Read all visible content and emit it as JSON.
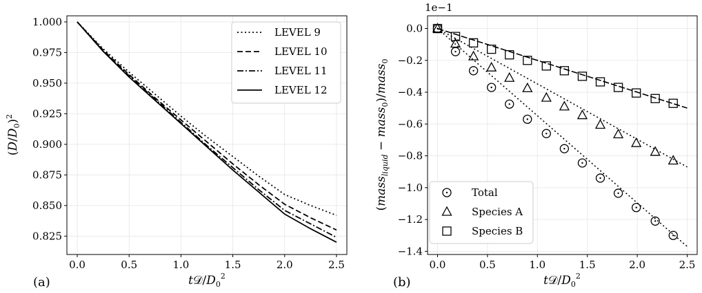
{
  "chart_data": [
    {
      "type": "line",
      "panel_label": "(a)",
      "xlabel": "tD/D0^2",
      "ylabel": "(D/D0)^2",
      "xlim": [
        -0.1,
        2.6
      ],
      "ylim": [
        0.81,
        1.005
      ],
      "xticks": [
        0.0,
        0.5,
        1.0,
        1.5,
        2.0,
        2.5
      ],
      "yticks": [
        0.825,
        0.85,
        0.875,
        0.9,
        0.925,
        0.95,
        0.975,
        1.0
      ],
      "xtick_labels": [
        "0.0",
        "0.5",
        "1.0",
        "1.5",
        "2.0",
        "2.5"
      ],
      "ytick_labels": [
        "0.825",
        "0.850",
        "0.875",
        "0.900",
        "0.925",
        "0.950",
        "0.975",
        "1.000"
      ],
      "grid": true,
      "legend": "top-right",
      "x": [
        0.0,
        0.25,
        0.5,
        0.75,
        1.0,
        1.25,
        1.5,
        1.75,
        2.0,
        2.25,
        2.5
      ],
      "series": [
        {
          "name": "LEVEL 9",
          "style": "dotted",
          "values": [
            1.0,
            0.978,
            0.959,
            0.941,
            0.923,
            0.906,
            0.89,
            0.874,
            0.859,
            0.85,
            0.842
          ]
        },
        {
          "name": "LEVEL 10",
          "style": "dashed",
          "values": [
            1.0,
            0.977,
            0.957,
            0.938,
            0.92,
            0.902,
            0.884,
            0.867,
            0.851,
            0.84,
            0.83
          ]
        },
        {
          "name": "LEVEL 11",
          "style": "dashdot",
          "values": [
            1.0,
            0.976,
            0.956,
            0.937,
            0.918,
            0.899,
            0.881,
            0.863,
            0.846,
            0.835,
            0.824
          ]
        },
        {
          "name": "LEVEL 12",
          "style": "solid",
          "values": [
            1.0,
            0.976,
            0.955,
            0.936,
            0.917,
            0.898,
            0.879,
            0.861,
            0.843,
            0.831,
            0.82
          ]
        }
      ]
    },
    {
      "type": "scatter",
      "panel_label": "(b)",
      "xlabel": "tD/D0^2",
      "ylabel": "(mass_liquid - mass_0)/mass_0",
      "offset_label": "1e−1",
      "xlim": [
        -0.1,
        2.6
      ],
      "ylim": [
        -1.42,
        0.08
      ],
      "xticks": [
        0.0,
        0.5,
        1.0,
        1.5,
        2.0,
        2.5
      ],
      "yticks": [
        0.0,
        -0.2,
        -0.4,
        -0.6,
        -0.8,
        -1.0,
        -1.2,
        -1.4
      ],
      "xtick_labels": [
        "0.0",
        "0.5",
        "1.0",
        "1.5",
        "2.0",
        "2.5"
      ],
      "ytick_labels": [
        "0.0",
        "−0.2",
        "−0.4",
        "−0.6",
        "−0.8",
        "−1.0",
        "−1.2",
        "−1.4"
      ],
      "grid": true,
      "legend": "bottom-left",
      "x": [
        0.0,
        0.18,
        0.36,
        0.54,
        0.72,
        0.9,
        1.09,
        1.27,
        1.45,
        1.63,
        1.81,
        1.99,
        2.18,
        2.36
      ],
      "series": [
        {
          "name": "Total",
          "marker": "circle",
          "values": [
            0.0,
            -0.145,
            -0.265,
            -0.37,
            -0.475,
            -0.57,
            -0.66,
            -0.755,
            -0.845,
            -0.94,
            -1.035,
            -1.125,
            -1.21,
            -1.3
          ],
          "fit": [
            [
              0.0,
              0.0
            ],
            [
              2.5,
              -1.37
            ]
          ]
        },
        {
          "name": "Species A",
          "marker": "triangle",
          "values": [
            0.0,
            -0.095,
            -0.175,
            -0.245,
            -0.31,
            -0.375,
            -0.435,
            -0.49,
            -0.545,
            -0.605,
            -0.665,
            -0.72,
            -0.775,
            -0.83
          ],
          "fit": [
            [
              0.0,
              0.0
            ],
            [
              2.5,
              -0.87
            ]
          ]
        },
        {
          "name": "Species B",
          "marker": "square",
          "values": [
            0.0,
            -0.05,
            -0.09,
            -0.13,
            -0.165,
            -0.2,
            -0.235,
            -0.265,
            -0.3,
            -0.335,
            -0.37,
            -0.405,
            -0.44,
            -0.47
          ],
          "fit": [
            [
              0.0,
              0.0
            ],
            [
              2.5,
              -0.5
            ]
          ]
        }
      ]
    }
  ]
}
